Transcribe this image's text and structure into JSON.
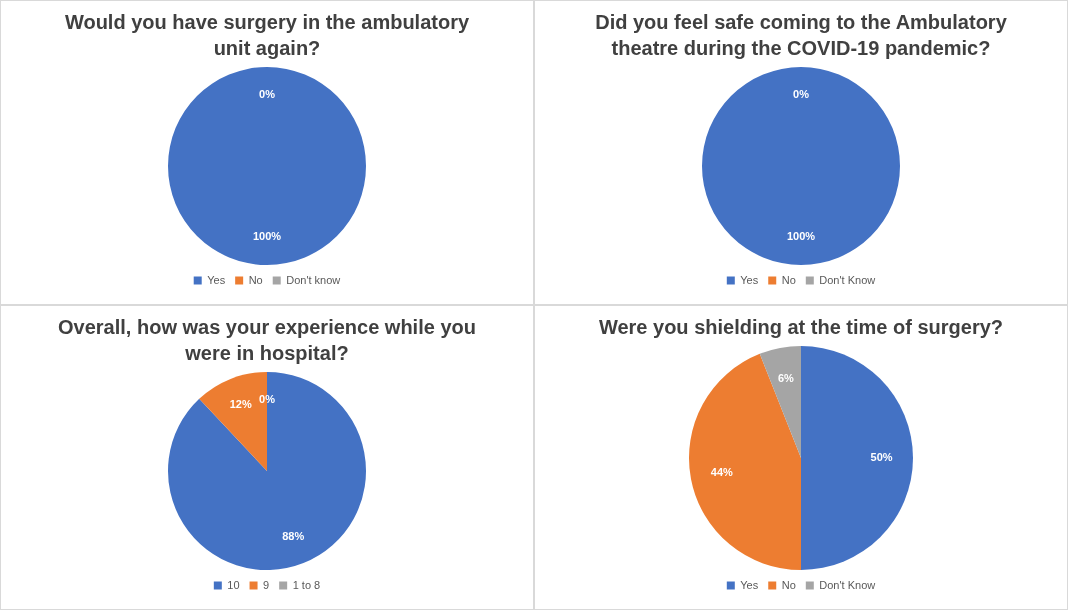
{
  "chart_data": [
    {
      "type": "pie",
      "title": "Would you have surgery in the ambulatory unit again?",
      "categories": [
        "Yes",
        "No",
        "Don't know"
      ],
      "values": [
        100,
        0,
        0
      ],
      "colors": [
        "#4472c4",
        "#ed7d31",
        "#a5a5a5"
      ],
      "value_labels": [
        "100%",
        "0%",
        null
      ],
      "legend": "bottom"
    },
    {
      "type": "pie",
      "title": "Did you feel safe coming to the Ambulatory theatre during the COVID-19 pandemic?",
      "categories": [
        "Yes",
        "No",
        "Don't Know"
      ],
      "values": [
        100,
        0,
        0
      ],
      "colors": [
        "#4472c4",
        "#ed7d31",
        "#a5a5a5"
      ],
      "value_labels": [
        "100%",
        "0%",
        null
      ],
      "legend": "bottom"
    },
    {
      "type": "pie",
      "title": "Overall, how was your experience while you were in hospital?",
      "categories": [
        "10",
        "9",
        "1 to 8"
      ],
      "values": [
        88,
        12,
        0
      ],
      "colors": [
        "#4472c4",
        "#ed7d31",
        "#a5a5a5"
      ],
      "value_labels": [
        "88%",
        "12%",
        "0%"
      ],
      "legend": "bottom"
    },
    {
      "type": "pie",
      "title": "Were you shielding at the time of surgery?",
      "categories": [
        "Yes",
        "No",
        "Don't Know"
      ],
      "values": [
        50,
        44,
        6
      ],
      "colors": [
        "#4472c4",
        "#ed7d31",
        "#a5a5a5"
      ],
      "value_labels": [
        "50%",
        "44%",
        "6%"
      ],
      "legend": "bottom"
    }
  ]
}
